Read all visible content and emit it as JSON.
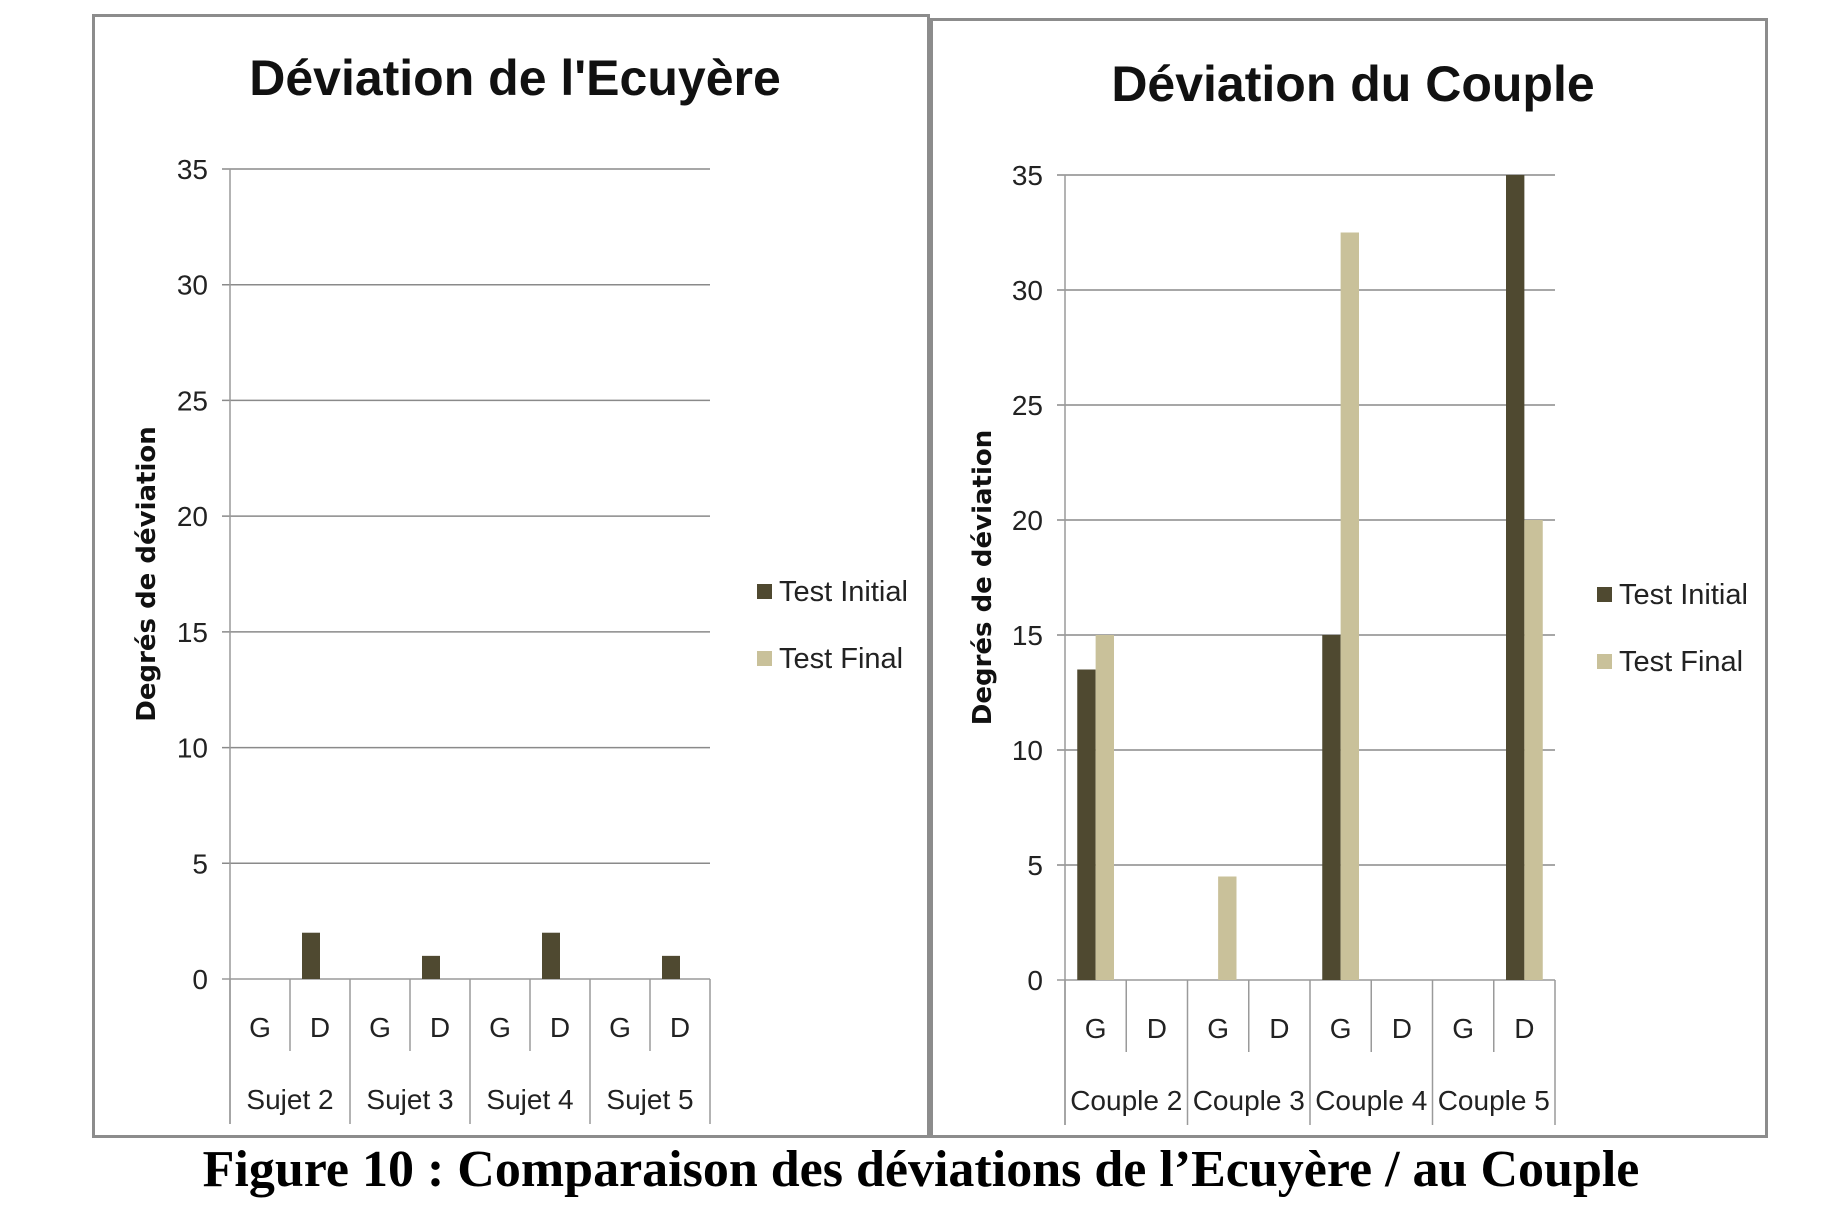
{
  "caption": "Figure 10 : Comparaison des déviations de l’Ecuyère / au Couple",
  "colors": {
    "initial": "#4f4930",
    "final": "#c9c19a",
    "grid": "#8a8a8a",
    "axis": "#9a9a9a"
  },
  "chart_data": [
    {
      "type": "bar",
      "title": "Déviation de l'Ecuyère",
      "ylabel": "Degrés de déviation",
      "xlabel": "",
      "ylim": [
        0,
        35
      ],
      "yticks": [
        0,
        5,
        10,
        15,
        20,
        25,
        30,
        35
      ],
      "grid": true,
      "legend_position": "right",
      "groups": [
        "Sujet 2",
        "Sujet 3",
        "Sujet 4",
        "Sujet 5"
      ],
      "subcategories": [
        "G",
        "D"
      ],
      "series": [
        {
          "name": "Test Initial",
          "values": [
            0,
            2,
            0,
            1,
            0,
            2,
            0,
            1
          ]
        },
        {
          "name": "Test Final",
          "values": [
            0,
            0,
            0,
            0,
            0,
            0,
            0,
            0
          ]
        }
      ]
    },
    {
      "type": "bar",
      "title": "Déviation du Couple",
      "ylabel": "Degrés de déviation",
      "xlabel": "",
      "ylim": [
        0,
        35
      ],
      "yticks": [
        0,
        5,
        10,
        15,
        20,
        25,
        30,
        35
      ],
      "grid": true,
      "legend_position": "right",
      "groups": [
        "Couple 2",
        "Couple 3",
        "Couple 4",
        "Couple 5"
      ],
      "subcategories": [
        "G",
        "D"
      ],
      "series": [
        {
          "name": "Test Initial",
          "values": [
            13.5,
            0,
            0,
            0,
            15,
            0,
            0,
            35
          ]
        },
        {
          "name": "Test Final",
          "values": [
            15,
            0,
            4.5,
            0,
            32.5,
            0,
            0,
            20
          ]
        }
      ]
    }
  ]
}
